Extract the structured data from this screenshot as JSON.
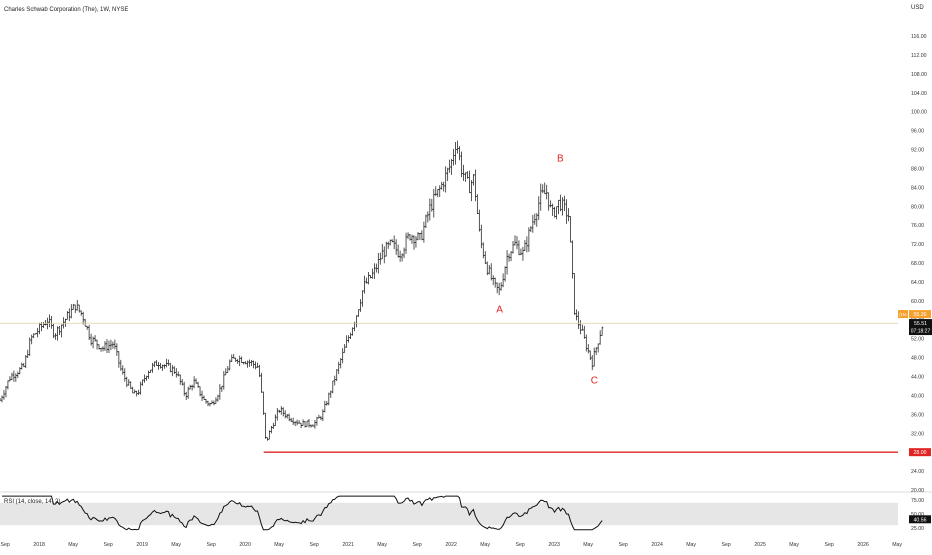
{
  "header": {
    "title": "Charles Schwab Corporation (The), 1W, NYSE"
  },
  "currency": "USD",
  "price_badges": {
    "highlight_small": "55.26",
    "highlight_small_prefix": "(He",
    "current_price": "55.51",
    "countdown": "07:18:27",
    "support": "28.00"
  },
  "colors": {
    "bars": "#2b2b2b",
    "support_line": "#e02424",
    "wave_labels": "#e02424",
    "price_line": "#d8cfa6",
    "badge_orange": "#f59f2c",
    "badge_black": "#111111",
    "rsi_band": "#e6e6e6",
    "rsi_line": "#111111"
  },
  "chart_data": {
    "type": "ohlc",
    "symbol": "Charles Schwab Corporation (The)",
    "interval": "1W",
    "exchange": "NYSE",
    "price_axis": {
      "ticks": [
        20.0,
        24.0,
        28.0,
        32.0,
        36.0,
        40.0,
        44.0,
        48.0,
        52.0,
        56.0,
        60.0,
        64.0,
        68.0,
        72.0,
        76.0,
        80.0,
        84.0,
        88.0,
        92.0,
        96.0,
        100.0,
        104.0,
        108.0,
        112.0,
        116.0
      ],
      "range": [
        20,
        118
      ]
    },
    "time_axis": {
      "range_years": [
        2017.62,
        2026.95
      ],
      "ticks": [
        {
          "t": 2017.67,
          "label": "Sep"
        },
        {
          "t": 2018.0,
          "label": "2018"
        },
        {
          "t": 2018.33,
          "label": "May"
        },
        {
          "t": 2018.67,
          "label": "Sep"
        },
        {
          "t": 2019.0,
          "label": "2019"
        },
        {
          "t": 2019.33,
          "label": "May"
        },
        {
          "t": 2019.67,
          "label": "Sep"
        },
        {
          "t": 2020.0,
          "label": "2020"
        },
        {
          "t": 2020.33,
          "label": "May"
        },
        {
          "t": 2020.67,
          "label": "Sep"
        },
        {
          "t": 2021.0,
          "label": "2021"
        },
        {
          "t": 2021.33,
          "label": "May"
        },
        {
          "t": 2021.67,
          "label": "Sep"
        },
        {
          "t": 2022.0,
          "label": "2022"
        },
        {
          "t": 2022.33,
          "label": "May"
        },
        {
          "t": 2022.67,
          "label": "Sep"
        },
        {
          "t": 2023.0,
          "label": "2023"
        },
        {
          "t": 2023.33,
          "label": "May"
        },
        {
          "t": 2023.67,
          "label": "Sep"
        },
        {
          "t": 2024.0,
          "label": "2024"
        },
        {
          "t": 2024.33,
          "label": "May"
        },
        {
          "t": 2024.67,
          "label": "Sep"
        },
        {
          "t": 2025.0,
          "label": "2025"
        },
        {
          "t": 2025.33,
          "label": "May"
        },
        {
          "t": 2025.67,
          "label": "Sep"
        },
        {
          "t": 2026.0,
          "label": "2026"
        },
        {
          "t": 2026.33,
          "label": "May"
        }
      ]
    },
    "price_path": [
      {
        "t": 2017.62,
        "p": 39
      },
      {
        "t": 2017.72,
        "p": 44
      },
      {
        "t": 2017.85,
        "p": 46
      },
      {
        "t": 2017.92,
        "p": 52
      },
      {
        "t": 2018.0,
        "p": 54
      },
      {
        "t": 2018.08,
        "p": 56
      },
      {
        "t": 2018.15,
        "p": 53
      },
      {
        "t": 2018.25,
        "p": 56
      },
      {
        "t": 2018.35,
        "p": 59
      },
      {
        "t": 2018.42,
        "p": 57
      },
      {
        "t": 2018.5,
        "p": 52
      },
      {
        "t": 2018.62,
        "p": 50
      },
      {
        "t": 2018.72,
        "p": 51
      },
      {
        "t": 2018.8,
        "p": 45
      },
      {
        "t": 2018.92,
        "p": 40
      },
      {
        "t": 2018.97,
        "p": 41
      },
      {
        "t": 2019.05,
        "p": 45
      },
      {
        "t": 2019.15,
        "p": 47
      },
      {
        "t": 2019.25,
        "p": 46
      },
      {
        "t": 2019.33,
        "p": 45
      },
      {
        "t": 2019.42,
        "p": 40
      },
      {
        "t": 2019.5,
        "p": 43
      },
      {
        "t": 2019.6,
        "p": 39
      },
      {
        "t": 2019.67,
        "p": 38
      },
      {
        "t": 2019.75,
        "p": 41
      },
      {
        "t": 2019.85,
        "p": 47
      },
      {
        "t": 2019.92,
        "p": 48
      },
      {
        "t": 2020.05,
        "p": 47
      },
      {
        "t": 2020.13,
        "p": 46
      },
      {
        "t": 2020.17,
        "p": 38
      },
      {
        "t": 2020.2,
        "p": 30
      },
      {
        "t": 2020.25,
        "p": 33
      },
      {
        "t": 2020.33,
        "p": 37
      },
      {
        "t": 2020.45,
        "p": 35
      },
      {
        "t": 2020.55,
        "p": 34
      },
      {
        "t": 2020.67,
        "p": 34
      },
      {
        "t": 2020.75,
        "p": 36
      },
      {
        "t": 2020.83,
        "p": 41
      },
      {
        "t": 2020.92,
        "p": 47
      },
      {
        "t": 2021.0,
        "p": 52
      },
      {
        "t": 2021.08,
        "p": 57
      },
      {
        "t": 2021.15,
        "p": 63
      },
      {
        "t": 2021.25,
        "p": 66
      },
      {
        "t": 2021.33,
        "p": 70
      },
      {
        "t": 2021.42,
        "p": 72
      },
      {
        "t": 2021.5,
        "p": 70
      },
      {
        "t": 2021.6,
        "p": 74
      },
      {
        "t": 2021.7,
        "p": 73
      },
      {
        "t": 2021.8,
        "p": 80
      },
      {
        "t": 2021.9,
        "p": 84
      },
      {
        "t": 2022.0,
        "p": 89
      },
      {
        "t": 2022.05,
        "p": 94
      },
      {
        "t": 2022.1,
        "p": 88
      },
      {
        "t": 2022.17,
        "p": 84
      },
      {
        "t": 2022.22,
        "p": 86
      },
      {
        "t": 2022.28,
        "p": 73
      },
      {
        "t": 2022.35,
        "p": 67
      },
      {
        "t": 2022.42,
        "p": 63
      },
      {
        "t": 2022.47,
        "p": 62
      },
      {
        "t": 2022.55,
        "p": 70
      },
      {
        "t": 2022.62,
        "p": 72
      },
      {
        "t": 2022.7,
        "p": 70
      },
      {
        "t": 2022.78,
        "p": 76
      },
      {
        "t": 2022.87,
        "p": 82
      },
      {
        "t": 2022.93,
        "p": 83
      },
      {
        "t": 2022.98,
        "p": 78
      },
      {
        "t": 2023.05,
        "p": 81
      },
      {
        "t": 2023.14,
        "p": 78
      },
      {
        "t": 2023.2,
        "p": 57
      },
      {
        "t": 2023.26,
        "p": 54
      },
      {
        "t": 2023.32,
        "p": 50
      },
      {
        "t": 2023.37,
        "p": 47
      },
      {
        "t": 2023.42,
        "p": 51
      },
      {
        "t": 2023.47,
        "p": 55
      }
    ],
    "horizontal_lines": [
      {
        "price": 28.0,
        "t_start": 2020.18,
        "label": "28.00"
      },
      {
        "price": 55.26,
        "label": "55.26"
      }
    ],
    "annotations": [
      {
        "text": "A",
        "t": 2022.47,
        "p": 57.5
      },
      {
        "text": "B",
        "t": 2023.06,
        "p": 89.5
      },
      {
        "text": "C",
        "t": 2023.39,
        "p": 42.5
      }
    ],
    "rsi": {
      "label": "RSI (14, close, 14, 2)",
      "ticks": [
        25.0,
        50.0,
        75.0
      ],
      "band": [
        30,
        70
      ],
      "current": "40.56",
      "range": [
        20,
        80
      ]
    }
  }
}
